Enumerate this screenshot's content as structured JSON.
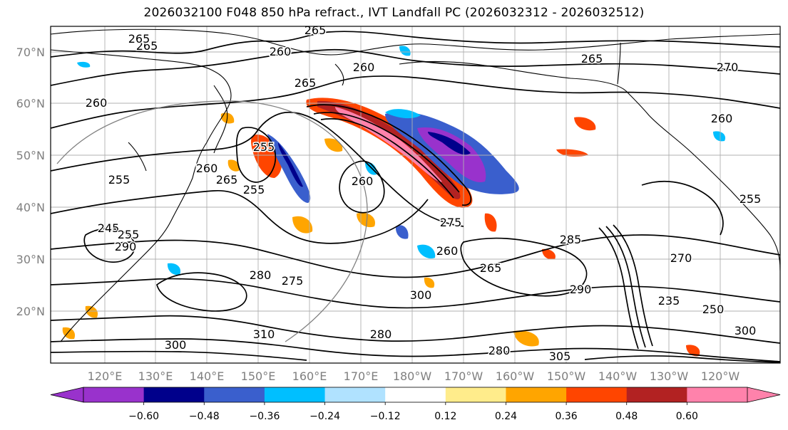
{
  "title": "2026032100 F048 850 hPa refract., IVT Landfall PC (2026032312 - 2026032512)",
  "lat_labels": [
    "70°N",
    "60°N",
    "50°N",
    "40°N",
    "30°N",
    "20°N"
  ],
  "lon_labels": [
    "120°E",
    "130°E",
    "140°E",
    "150°E",
    "160°E",
    "170°E",
    "180°W",
    "170°W",
    "160°W",
    "150°W",
    "140°W",
    "130°W",
    "120°W"
  ],
  "colorbar": {
    "colors": [
      "#9932cc",
      "#00008b",
      "#3a5fcd",
      "#00bfff",
      "#b0e2ff",
      "#ffffff",
      "#ffec8b",
      "#ffa500",
      "#ff4500",
      "#b22222",
      "#ff82ab"
    ],
    "tick_labels": [
      "−0.60",
      "−0.48",
      "−0.36",
      "−0.24",
      "−0.12",
      "0.12",
      "0.24",
      "0.36",
      "0.48",
      "0.60"
    ]
  },
  "contour_labels": [
    {
      "text": "265"
    },
    {
      "text": "265"
    },
    {
      "text": "260"
    },
    {
      "text": "260"
    },
    {
      "text": "265"
    },
    {
      "text": "270"
    },
    {
      "text": "260"
    },
    {
      "text": "265"
    },
    {
      "text": "260"
    },
    {
      "text": "255"
    },
    {
      "text": "255"
    },
    {
      "text": "255"
    },
    {
      "text": "260"
    },
    {
      "text": "265"
    },
    {
      "text": "260"
    },
    {
      "text": "245"
    },
    {
      "text": "255"
    },
    {
      "text": "275"
    },
    {
      "text": "260"
    },
    {
      "text": "265"
    },
    {
      "text": "280"
    },
    {
      "text": "275"
    },
    {
      "text": "285"
    },
    {
      "text": "290"
    },
    {
      "text": "290"
    },
    {
      "text": "280"
    },
    {
      "text": "310"
    },
    {
      "text": "280"
    },
    {
      "text": "305"
    },
    {
      "text": "300"
    },
    {
      "text": "300"
    },
    {
      "text": "250"
    },
    {
      "text": "235"
    },
    {
      "text": "255"
    },
    {
      "text": "270"
    },
    {
      "text": "265"
    },
    {
      "text": "300"
    }
  ]
}
